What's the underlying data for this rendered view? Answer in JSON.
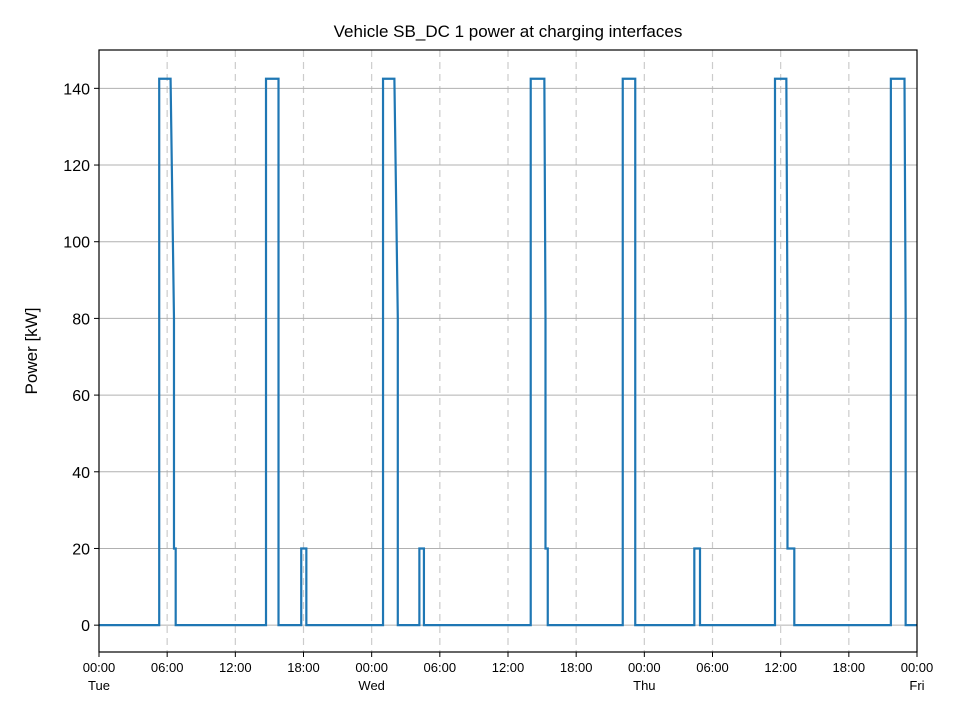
{
  "chart_data": {
    "type": "line",
    "title": "Vehicle SB_DC 1 power at charging interfaces",
    "xlabel": "",
    "ylabel": "Power [kW]",
    "xlim_hours": [
      0,
      72
    ],
    "ylim": [
      -7,
      150
    ],
    "yticks": [
      0,
      20,
      40,
      60,
      80,
      100,
      120,
      140
    ],
    "xticks": [
      {
        "hour": 0,
        "label": "00:00",
        "sub": "Tue"
      },
      {
        "hour": 6,
        "label": "06:00",
        "sub": ""
      },
      {
        "hour": 12,
        "label": "12:00",
        "sub": ""
      },
      {
        "hour": 18,
        "label": "18:00",
        "sub": ""
      },
      {
        "hour": 24,
        "label": "00:00",
        "sub": "Wed"
      },
      {
        "hour": 30,
        "label": "06:00",
        "sub": ""
      },
      {
        "hour": 36,
        "label": "12:00",
        "sub": ""
      },
      {
        "hour": 42,
        "label": "18:00",
        "sub": ""
      },
      {
        "hour": 48,
        "label": "00:00",
        "sub": "Thu"
      },
      {
        "hour": 54,
        "label": "06:00",
        "sub": ""
      },
      {
        "hour": 60,
        "label": "12:00",
        "sub": ""
      },
      {
        "hour": 66,
        "label": "18:00",
        "sub": ""
      },
      {
        "hour": 72,
        "label": "00:00",
        "sub": "Fri"
      }
    ],
    "grid": {
      "y": true,
      "x_dashed": true
    },
    "colors": {
      "line": "#1f77b4",
      "grid": "#b0b0b0",
      "vgrid": "#cccccc",
      "axis": "#000000"
    },
    "series": [
      {
        "name": "Vehicle SB_DC 1",
        "points": [
          [
            0,
            0
          ],
          [
            5.3,
            0
          ],
          [
            5.3,
            142.5
          ],
          [
            6.3,
            142.5
          ],
          [
            6.6,
            80
          ],
          [
            6.6,
            20
          ],
          [
            6.75,
            20
          ],
          [
            6.75,
            0
          ],
          [
            14.7,
            0
          ],
          [
            14.7,
            142.5
          ],
          [
            15.8,
            142.5
          ],
          [
            15.8,
            0
          ],
          [
            17.8,
            0
          ],
          [
            17.8,
            20
          ],
          [
            18.25,
            20
          ],
          [
            18.25,
            0
          ],
          [
            25.0,
            0
          ],
          [
            25.0,
            142.5
          ],
          [
            26.0,
            142.5
          ],
          [
            26.3,
            80
          ],
          [
            26.3,
            0
          ],
          [
            28.2,
            0
          ],
          [
            28.2,
            20
          ],
          [
            28.6,
            20
          ],
          [
            28.6,
            0
          ],
          [
            38.0,
            0
          ],
          [
            38.0,
            142.5
          ],
          [
            39.2,
            142.5
          ],
          [
            39.3,
            80
          ],
          [
            39.3,
            20
          ],
          [
            39.5,
            20
          ],
          [
            39.5,
            0
          ],
          [
            46.1,
            0
          ],
          [
            46.1,
            142.5
          ],
          [
            47.2,
            142.5
          ],
          [
            47.2,
            0
          ],
          [
            52.4,
            0
          ],
          [
            52.4,
            20
          ],
          [
            52.9,
            20
          ],
          [
            52.9,
            0
          ],
          [
            59.5,
            0
          ],
          [
            59.5,
            142.5
          ],
          [
            60.5,
            142.5
          ],
          [
            60.6,
            80
          ],
          [
            60.6,
            20
          ],
          [
            61.2,
            20
          ],
          [
            61.2,
            0
          ],
          [
            69.7,
            0
          ],
          [
            69.7,
            142.5
          ],
          [
            70.9,
            142.5
          ],
          [
            71.0,
            80
          ],
          [
            71.0,
            0
          ],
          [
            72,
            0
          ]
        ]
      }
    ]
  }
}
